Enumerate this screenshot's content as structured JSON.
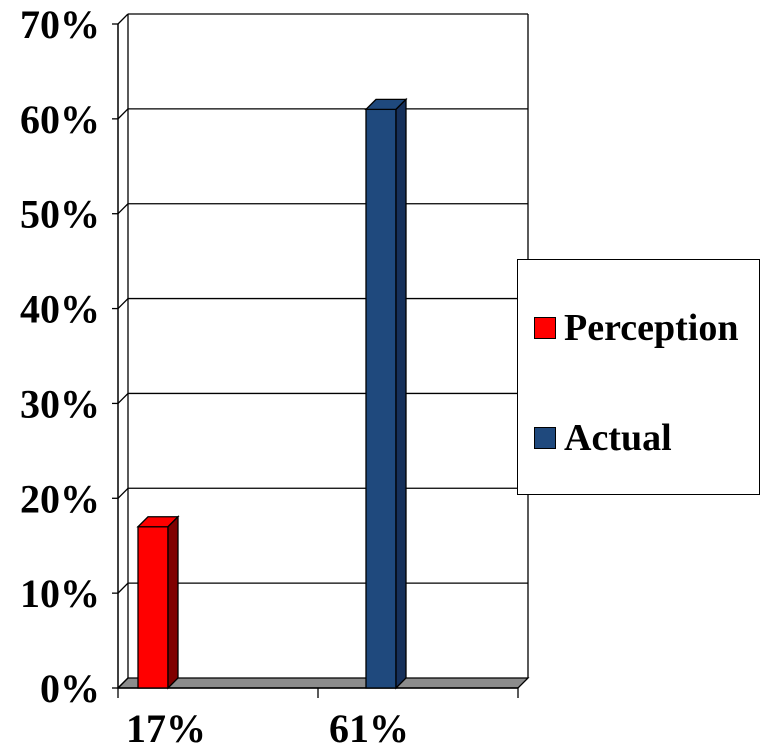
{
  "chart_data": {
    "type": "bar",
    "categories": [
      "17%",
      "61%"
    ],
    "series": [
      {
        "name": "Perception",
        "values": [
          17,
          null
        ],
        "color": "#ff0000",
        "side_color": "#800000"
      },
      {
        "name": "Actual",
        "values": [
          null,
          61
        ],
        "color": "#1f497d",
        "side_color": "#16305a"
      }
    ],
    "ylim": [
      0,
      70
    ],
    "yticks": [
      0,
      10,
      20,
      30,
      40,
      50,
      60,
      70
    ],
    "ytick_labels": [
      "0%",
      "10%",
      "20%",
      "30%",
      "40%",
      "50%",
      "60%",
      "70%"
    ],
    "grid": true,
    "legend_position": "right"
  }
}
